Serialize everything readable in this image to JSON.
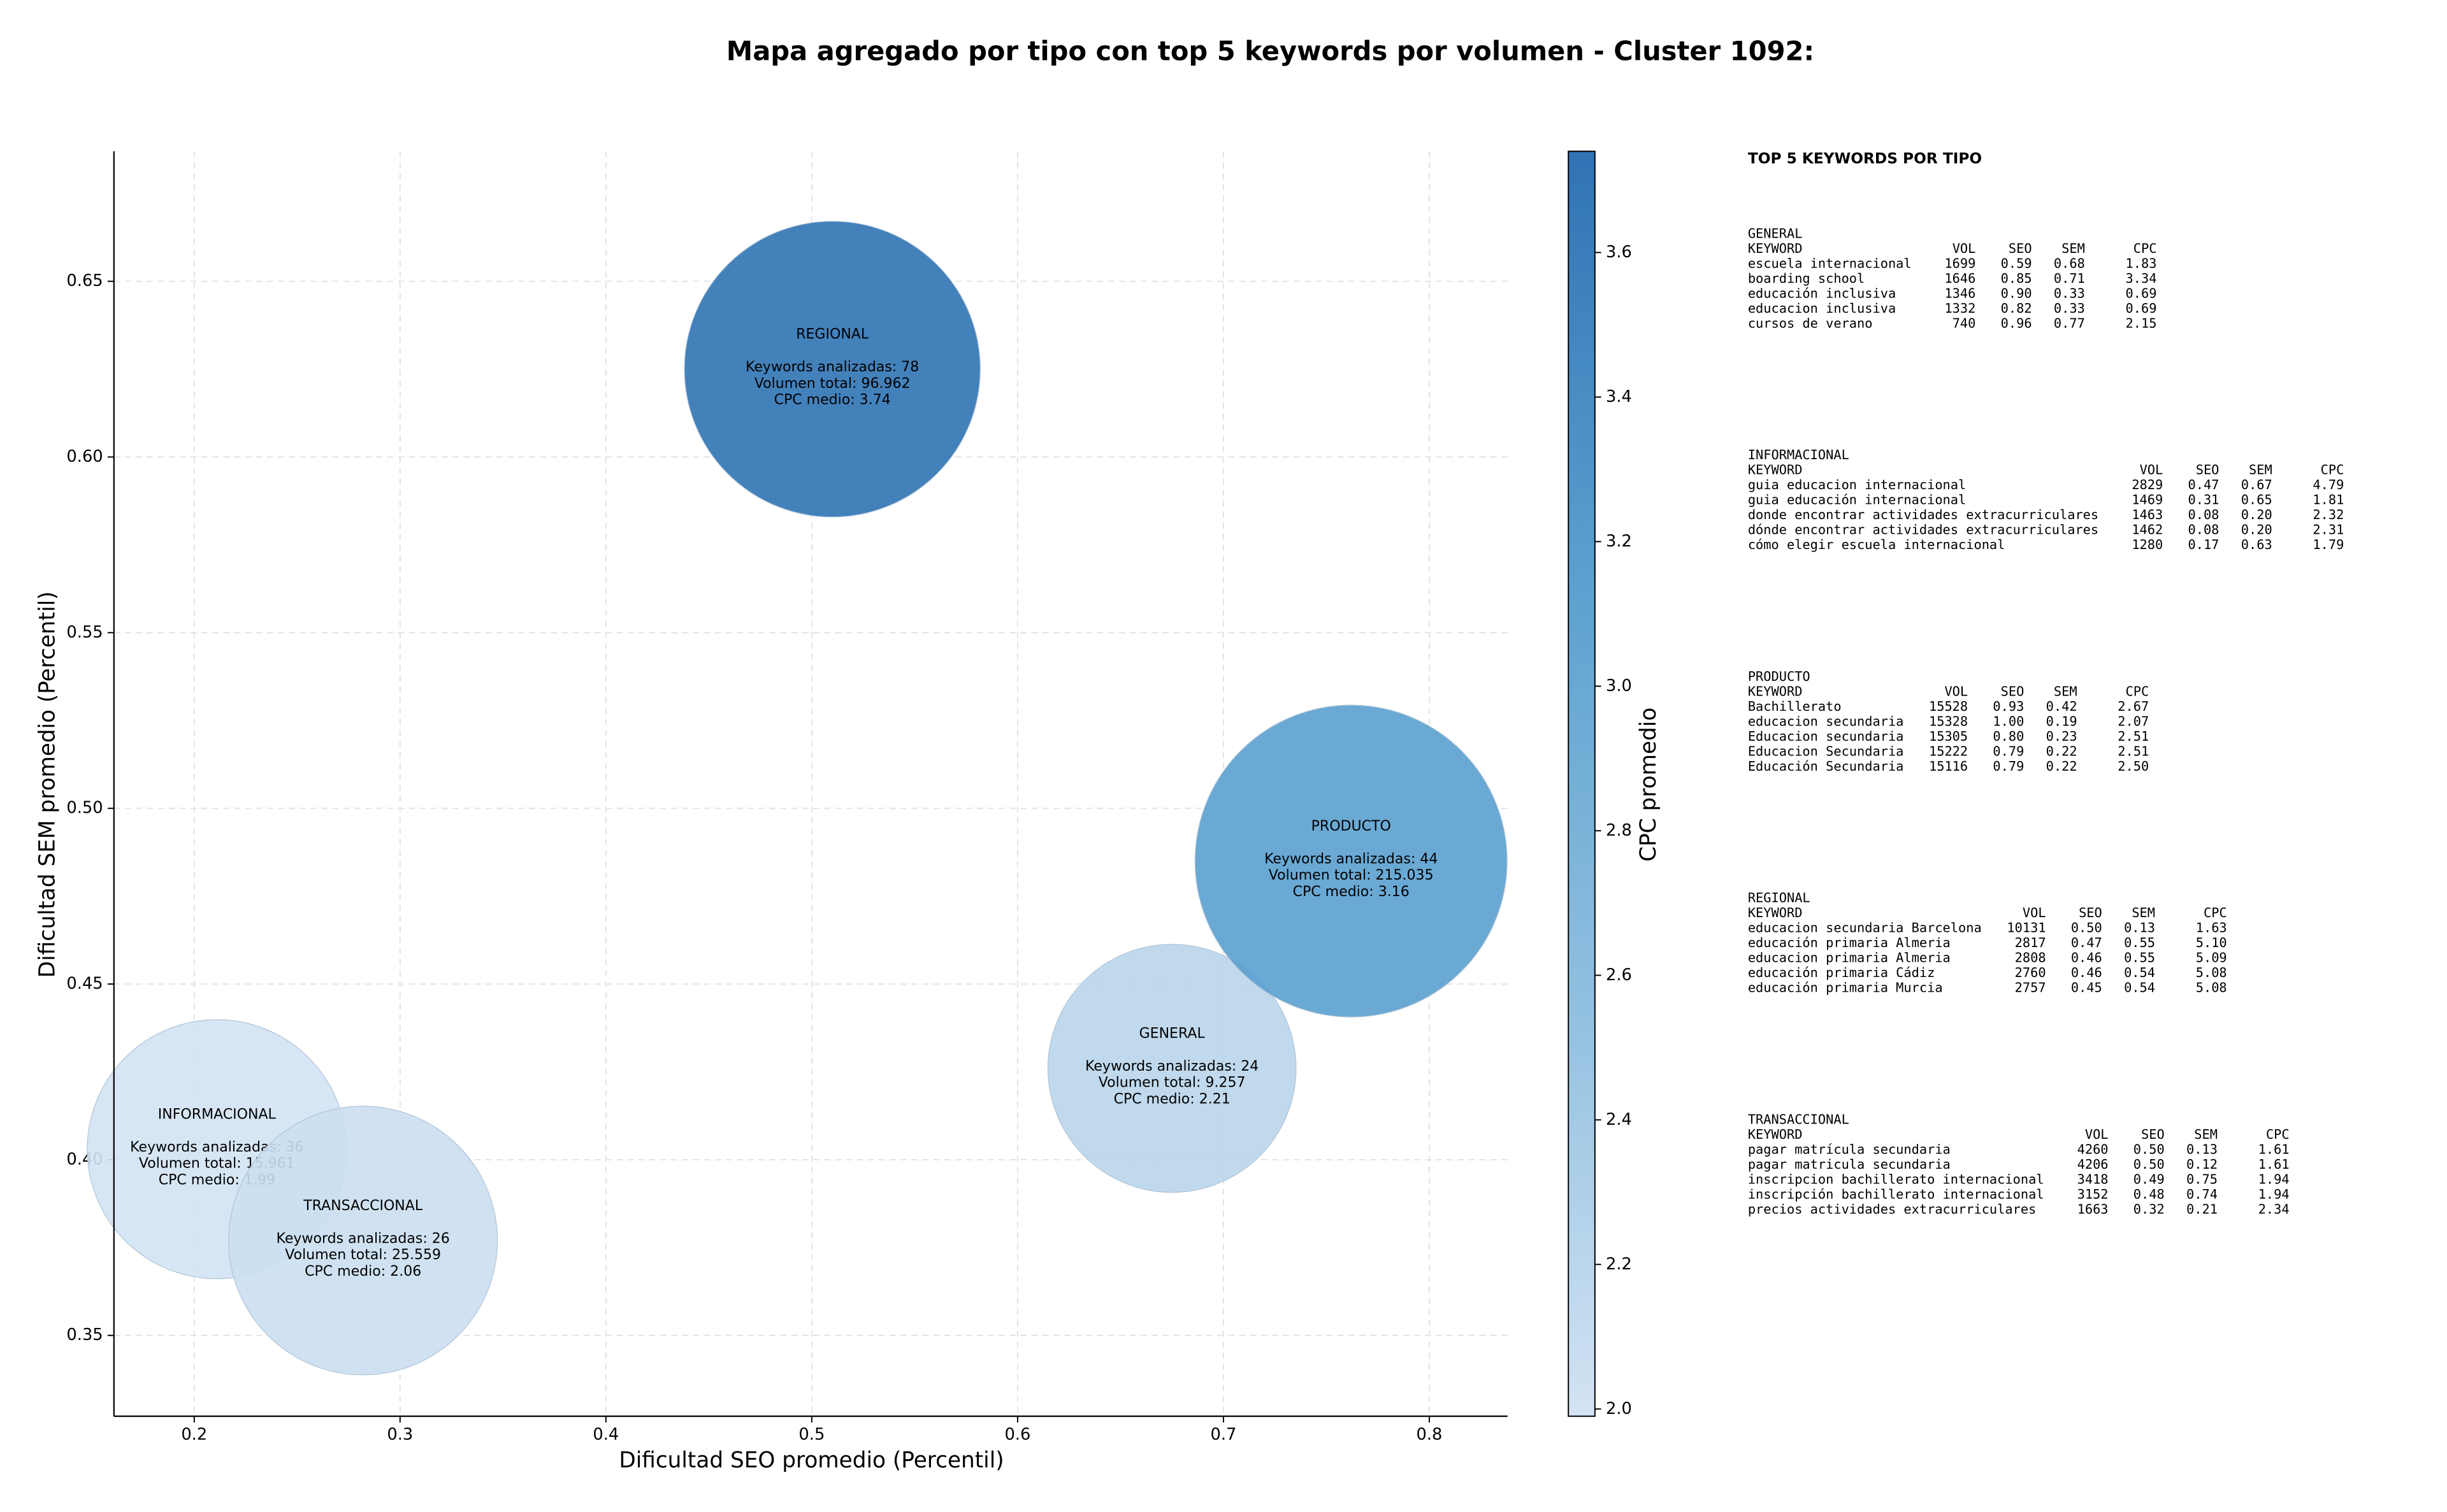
{
  "chart_data": {
    "type": "scatter",
    "title": "Mapa agregado por tipo con top 5 keywords por volumen - Cluster 1092:",
    "x_label": "Dificultad SEO promedio (Percentil)",
    "y_label": "Dificultad SEM promedio (Percentil)",
    "colorbar_label": "CPC promedio",
    "categories": [
      "GENERAL",
      "INFORMACIONAL",
      "PRODUCTO",
      "REGIONAL",
      "TRANSACCIONAL"
    ],
    "x": [
      0.675,
      0.211,
      0.762,
      0.51,
      0.282
    ],
    "y": [
      0.426,
      0.403,
      0.485,
      0.625,
      0.377
    ],
    "volume": [
      9257,
      15961,
      215035,
      96962,
      25559
    ],
    "cpc": [
      2.21,
      1.99,
      3.16,
      3.74,
      2.06
    ],
    "annotations": [
      [
        "Keywords analizadas: 24",
        "Volumen total: 9.257",
        "CPC medio: 2.21"
      ],
      [
        "Keywords analizadas: 36",
        "Volumen total: 15.961",
        "CPC medio: 1.99"
      ],
      [
        "Keywords analizadas: 44",
        "Volumen total: 215.035",
        "CPC medio: 3.16"
      ],
      [
        "Keywords analizadas: 78",
        "Volumen total: 96.962",
        "CPC medio: 3.74"
      ],
      [
        "Keywords analizadas: 26",
        "Volumen total: 25.559",
        "CPC medio: 2.06"
      ]
    ],
    "xlim": [
      0.161,
      0.838
    ],
    "ylim": [
      0.327,
      0.687
    ],
    "xticks": [
      0.2,
      0.3,
      0.4,
      0.5,
      0.6,
      0.7,
      0.8
    ],
    "yticks": [
      0.35,
      {
        "value": 0.4,
        "label": "0.40"
      },
      0.45,
      {
        "value": 0.5,
        "label": "0.50"
      },
      0.55,
      {
        "value": 0.6,
        "label": "0.60"
      },
      0.65
    ],
    "clim": [
      1.99,
      3.74
    ],
    "cticks": [
      {
        "value": 2.0,
        "label": "2.0"
      },
      2.2,
      2.4,
      2.6,
      2.8,
      {
        "value": 3.0,
        "label": "3.0"
      },
      3.2,
      3.4,
      3.6
    ],
    "colormap": [
      "#d3e3f3",
      "#8fbfdf",
      "#5aa0cf",
      "#2f73b4"
    ],
    "grid": true
  },
  "panel": {
    "title": "TOP 5 KEYWORDS POR TIPO",
    "tables": [
      {
        "name": "GENERAL",
        "header": [
          "KEYWORD",
          "VOL",
          "SEO",
          "SEM",
          "CPC"
        ],
        "rows": [
          [
            "escuela internacional",
            "1699",
            "0.59",
            "0.68",
            "1.83"
          ],
          [
            "boarding school",
            "1646",
            "0.85",
            "0.71",
            "3.34"
          ],
          [
            "educación inclusiva",
            "1346",
            "0.90",
            "0.33",
            "0.69"
          ],
          [
            "educacion inclusiva",
            "1332",
            "0.82",
            "0.33",
            "0.69"
          ],
          [
            "cursos de verano",
            "740",
            "0.96",
            "0.77",
            "2.15"
          ]
        ]
      },
      {
        "name": "INFORMACIONAL",
        "header": [
          "KEYWORD",
          "VOL",
          "SEO",
          "SEM",
          "CPC"
        ],
        "rows": [
          [
            "guia educacion internacional",
            "2829",
            "0.47",
            "0.67",
            "4.79"
          ],
          [
            "guia educación internacional",
            "1469",
            "0.31",
            "0.65",
            "1.81"
          ],
          [
            "donde encontrar actividades extracurriculares",
            "1463",
            "0.08",
            "0.20",
            "2.32"
          ],
          [
            "dónde encontrar actividades extracurriculares",
            "1462",
            "0.08",
            "0.20",
            "2.31"
          ],
          [
            "cómo elegir escuela internacional",
            "1280",
            "0.17",
            "0.63",
            "1.79"
          ]
        ]
      },
      {
        "name": "PRODUCTO",
        "header": [
          "KEYWORD",
          "VOL",
          "SEO",
          "SEM",
          "CPC"
        ],
        "rows": [
          [
            "Bachillerato",
            "15528",
            "0.93",
            "0.42",
            "2.67"
          ],
          [
            "educacion secundaria",
            "15328",
            "1.00",
            "0.19",
            "2.07"
          ],
          [
            "Educacion secundaria",
            "15305",
            "0.80",
            "0.23",
            "2.51"
          ],
          [
            "Educacion Secundaria",
            "15222",
            "0.79",
            "0.22",
            "2.51"
          ],
          [
            "Educación Secundaria",
            "15116",
            "0.79",
            "0.22",
            "2.50"
          ]
        ]
      },
      {
        "name": "REGIONAL",
        "header": [
          "KEYWORD",
          "VOL",
          "SEO",
          "SEM",
          "CPC"
        ],
        "rows": [
          [
            "educacion secundaria Barcelona",
            "10131",
            "0.50",
            "0.13",
            "1.63"
          ],
          [
            "educación primaria Almeria",
            "2817",
            "0.47",
            "0.55",
            "5.10"
          ],
          [
            "educacion primaria Almeria",
            "2808",
            "0.46",
            "0.55",
            "5.09"
          ],
          [
            "educación primaria Cádiz",
            "2760",
            "0.46",
            "0.54",
            "5.08"
          ],
          [
            "educación primaria Murcia",
            "2757",
            "0.45",
            "0.54",
            "5.08"
          ]
        ]
      },
      {
        "name": "TRANSACCIONAL",
        "header": [
          "KEYWORD",
          "VOL",
          "SEO",
          "SEM",
          "CPC"
        ],
        "rows": [
          [
            "pagar matrícula secundaria",
            "4260",
            "0.50",
            "0.13",
            "1.61"
          ],
          [
            "pagar matricula secundaria",
            "4206",
            "0.50",
            "0.12",
            "1.61"
          ],
          [
            "inscripcion bachillerato internacional",
            "3418",
            "0.49",
            "0.75",
            "1.94"
          ],
          [
            "inscripción bachillerato internacional",
            "3152",
            "0.48",
            "0.74",
            "1.94"
          ],
          [
            "precios actividades extracurriculares",
            "1663",
            "0.32",
            "0.21",
            "2.34"
          ]
        ]
      }
    ]
  }
}
